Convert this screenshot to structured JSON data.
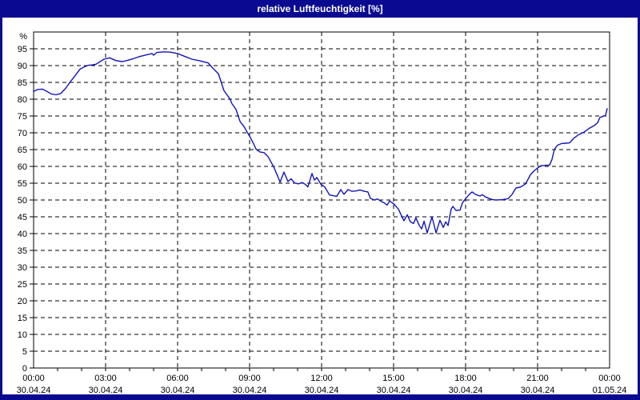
{
  "window": {
    "title": "relative Luftfeuchtigkeit [%]"
  },
  "colors": {
    "frame_navy": "#0a0a91",
    "title_text": "#ffffff",
    "plot_background": "#ffffff",
    "grid": "#000000",
    "axis": "#000000",
    "line": "#1414b8"
  },
  "chart_data": {
    "type": "line",
    "title": "relative Luftfeuchtigkeit [%]",
    "ylabel": "%",
    "y_unit_label": "%",
    "ylim": [
      0,
      100
    ],
    "yticks": [
      0,
      5,
      10,
      15,
      20,
      25,
      30,
      35,
      40,
      45,
      50,
      55,
      60,
      65,
      70,
      75,
      80,
      85,
      90,
      95
    ],
    "xlim_hours": [
      0,
      24
    ],
    "x_minor_tick_every_hours": 1,
    "grid": "dashed-black",
    "legend": "none",
    "xticks": [
      {
        "hour": 0,
        "time": "00:00",
        "date": "30.04.24"
      },
      {
        "hour": 3,
        "time": "03:00",
        "date": "30.04.24"
      },
      {
        "hour": 6,
        "time": "06:00",
        "date": "30.04.24"
      },
      {
        "hour": 9,
        "time": "09:00",
        "date": "30.04.24"
      },
      {
        "hour": 12,
        "time": "12:00",
        "date": "30.04.24"
      },
      {
        "hour": 15,
        "time": "15:00",
        "date": "30.04.24"
      },
      {
        "hour": 18,
        "time": "18:00",
        "date": "30.04.24"
      },
      {
        "hour": 21,
        "time": "21:00",
        "date": "30.04.24"
      },
      {
        "hour": 24,
        "time": "00:00",
        "date": "01.05.24"
      }
    ],
    "series": [
      {
        "name": "relative Luftfeuchtigkeit",
        "unit": "%",
        "color": "#1414b8",
        "points": [
          [
            0,
            82.3
          ],
          [
            0.17,
            82.9
          ],
          [
            0.37,
            83
          ],
          [
            0.53,
            82.4
          ],
          [
            0.73,
            81.6
          ],
          [
            0.93,
            81.3
          ],
          [
            1.13,
            81.7
          ],
          [
            1.33,
            83.2
          ],
          [
            1.53,
            85.2
          ],
          [
            1.73,
            87
          ],
          [
            1.93,
            88.9
          ],
          [
            2.1,
            89.6
          ],
          [
            2.27,
            90.1
          ],
          [
            2.43,
            90.2
          ],
          [
            2.6,
            90.4
          ],
          [
            2.77,
            91.2
          ],
          [
            2.93,
            91.9
          ],
          [
            3.17,
            92.3
          ],
          [
            3.43,
            91.5
          ],
          [
            3.7,
            91.2
          ],
          [
            3.93,
            91.6
          ],
          [
            4.13,
            92
          ],
          [
            4.37,
            92.6
          ],
          [
            4.7,
            93.2
          ],
          [
            4.93,
            93.6
          ],
          [
            5,
            93.1
          ],
          [
            5.13,
            93.9
          ],
          [
            5.43,
            94.1
          ],
          [
            5.7,
            94
          ],
          [
            6,
            93.6
          ],
          [
            6.27,
            92.8
          ],
          [
            6.6,
            91.9
          ],
          [
            6.93,
            91.4
          ],
          [
            7.27,
            90.8
          ],
          [
            7.5,
            89
          ],
          [
            7.7,
            87.6
          ],
          [
            7.93,
            82.6
          ],
          [
            8.17,
            80.2
          ],
          [
            8.27,
            78.6
          ],
          [
            8.43,
            77
          ],
          [
            8.6,
            73.4
          ],
          [
            8.77,
            71.8
          ],
          [
            8.93,
            69.8
          ],
          [
            9,
            69
          ],
          [
            9.17,
            66.7
          ],
          [
            9.27,
            65.1
          ],
          [
            9.43,
            64.3
          ],
          [
            9.6,
            64.1
          ],
          [
            9.77,
            62.9
          ],
          [
            10,
            59.9
          ],
          [
            10.17,
            57.1
          ],
          [
            10.27,
            55.3
          ],
          [
            10.43,
            58.3
          ],
          [
            10.6,
            55.5
          ],
          [
            10.73,
            56.3
          ],
          [
            10.87,
            55.1
          ],
          [
            11.03,
            54.8
          ],
          [
            11.2,
            55.2
          ],
          [
            11.33,
            54.6
          ],
          [
            11.43,
            53.9
          ],
          [
            11.6,
            57.9
          ],
          [
            11.7,
            55.9
          ],
          [
            11.8,
            56.7
          ],
          [
            11.97,
            54.7
          ],
          [
            12.13,
            53.9
          ],
          [
            12.33,
            51.5
          ],
          [
            12.63,
            51.1
          ],
          [
            12.8,
            53.1
          ],
          [
            12.93,
            51.7
          ],
          [
            13.1,
            53.1
          ],
          [
            13.27,
            52.6
          ],
          [
            13.43,
            52.7
          ],
          [
            13.6,
            53
          ],
          [
            13.77,
            52.6
          ],
          [
            13.93,
            52.4
          ],
          [
            14.03,
            50.5
          ],
          [
            14.2,
            50
          ],
          [
            14.33,
            50.3
          ],
          [
            14.5,
            49.5
          ],
          [
            14.6,
            49.2
          ],
          [
            14.73,
            48.5
          ],
          [
            14.83,
            49.7
          ],
          [
            15,
            48.9
          ],
          [
            15.2,
            47.3
          ],
          [
            15.33,
            45.3
          ],
          [
            15.43,
            43.8
          ],
          [
            15.57,
            45.6
          ],
          [
            15.7,
            43.5
          ],
          [
            15.83,
            43
          ],
          [
            15.93,
            44.7
          ],
          [
            16.07,
            42.4
          ],
          [
            16.17,
            41.4
          ],
          [
            16.27,
            43.7
          ],
          [
            16.4,
            40.2
          ],
          [
            16.6,
            45
          ],
          [
            16.77,
            40.2
          ],
          [
            16.93,
            44
          ],
          [
            17.07,
            41.8
          ],
          [
            17.17,
            43.5
          ],
          [
            17.27,
            42.4
          ],
          [
            17.4,
            47.3
          ],
          [
            17.47,
            48.1
          ],
          [
            17.6,
            46.9
          ],
          [
            17.77,
            47
          ],
          [
            17.87,
            49.2
          ],
          [
            18,
            50.4
          ],
          [
            18.17,
            51.8
          ],
          [
            18.27,
            52.4
          ],
          [
            18.43,
            51.6
          ],
          [
            18.6,
            51.2
          ],
          [
            18.7,
            51.6
          ],
          [
            18.83,
            50.9
          ],
          [
            19,
            50.4
          ],
          [
            19.13,
            50.1
          ],
          [
            19.27,
            50
          ],
          [
            19.53,
            50.1
          ],
          [
            19.77,
            50.4
          ],
          [
            19.93,
            51.6
          ],
          [
            20.1,
            53.6
          ],
          [
            20.27,
            53.8
          ],
          [
            20.37,
            54.2
          ],
          [
            20.5,
            54.8
          ],
          [
            20.7,
            57.5
          ],
          [
            20.87,
            58.8
          ],
          [
            21,
            59.5
          ],
          [
            21.13,
            60.2
          ],
          [
            21.33,
            60.3
          ],
          [
            21.5,
            60.4
          ],
          [
            21.6,
            62.1
          ],
          [
            21.7,
            65.1
          ],
          [
            21.83,
            66.3
          ],
          [
            22,
            66.8
          ],
          [
            22.17,
            66.9
          ],
          [
            22.33,
            67
          ],
          [
            22.5,
            68.3
          ],
          [
            22.7,
            69.4
          ],
          [
            22.93,
            70.2
          ],
          [
            23.17,
            71.4
          ],
          [
            23.37,
            72.2
          ],
          [
            23.5,
            73
          ],
          [
            23.6,
            74.6
          ],
          [
            23.73,
            74.9
          ],
          [
            23.83,
            75.2
          ],
          [
            23.9,
            77.2
          ]
        ]
      }
    ]
  }
}
